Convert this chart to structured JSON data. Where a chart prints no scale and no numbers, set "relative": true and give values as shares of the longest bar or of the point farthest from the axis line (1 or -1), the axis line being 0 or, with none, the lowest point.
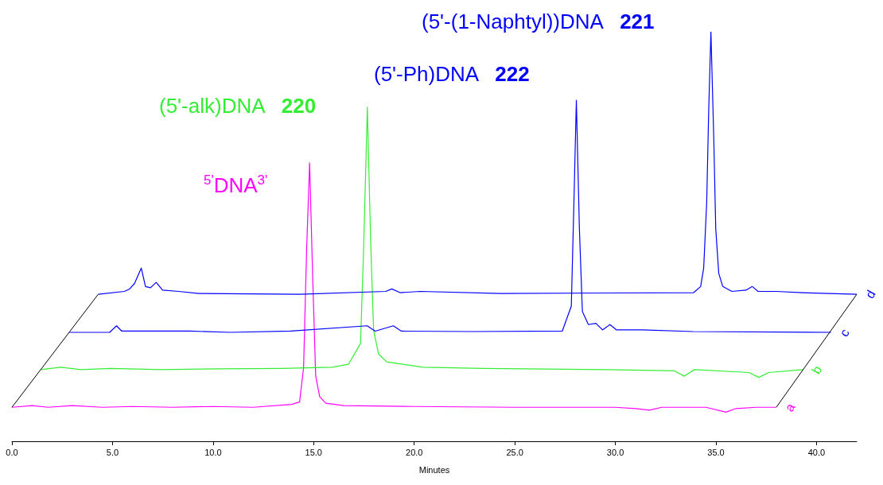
{
  "chart_data": {
    "type": "line",
    "relative": true,
    "xlabel": "Minutes",
    "xlim": [
      0,
      42
    ],
    "xticks": [
      {
        "value": 0,
        "label": "0.0"
      },
      {
        "value": 5,
        "label": "5.0"
      },
      {
        "value": 10,
        "label": "10.0"
      },
      {
        "value": 15,
        "label": "15.0"
      },
      {
        "value": 20,
        "label": "20.0"
      },
      {
        "value": 25,
        "label": "25.0"
      },
      {
        "value": 30,
        "label": "30.0"
      },
      {
        "value": 35,
        "label": "35.0"
      },
      {
        "value": 40,
        "label": "40.0"
      }
    ],
    "grid": false,
    "legend": false,
    "marker": "none",
    "line_style": "solid",
    "annotations": [
      "$^{5'}$DNA$^{3'}$",
      "(5'-alk)DNA   220",
      "(5'-Ph)DNA   222",
      "(5'-(1-Naphtyl))DNA   221"
    ],
    "series": [
      {
        "name": "a",
        "color": "#ff00ff",
        "x": [
          0,
          1.0,
          1.8,
          3.0,
          4.5,
          6.0,
          8.0,
          10.0,
          12.0,
          13.9,
          14.3,
          14.5,
          14.65,
          14.8,
          14.95,
          15.1,
          15.3,
          15.6,
          16.5,
          20,
          25,
          30,
          31.0,
          31.7,
          32.3,
          34.5,
          35.5,
          36.0,
          37,
          38.0
        ],
        "values": [
          0.083,
          0.087,
          0.083,
          0.087,
          0.083,
          0.085,
          0.083,
          0.085,
          0.083,
          0.09,
          0.096,
          0.18,
          0.468,
          0.68,
          0.404,
          0.16,
          0.109,
          0.093,
          0.087,
          0.085,
          0.083,
          0.083,
          0.08,
          0.076,
          0.083,
          0.083,
          0.071,
          0.08,
          0.083,
          0.083
        ]
      },
      {
        "name": "b",
        "color": "#33ee33",
        "x": [
          1.43,
          2.43,
          3.43,
          4.93,
          7.43,
          10.43,
          13.43,
          15.93,
          16.73,
          17.33,
          17.48,
          17.67,
          17.83,
          17.98,
          18.23,
          18.63,
          19.43,
          20.43,
          23.43,
          29.43,
          32.93,
          33.43,
          33.93,
          36.63,
          37.13,
          37.63,
          39.33
        ],
        "values": [
          0.175,
          0.181,
          0.175,
          0.178,
          0.175,
          0.177,
          0.178,
          0.181,
          0.188,
          0.239,
          0.463,
          0.816,
          0.495,
          0.271,
          0.213,
          0.194,
          0.188,
          0.181,
          0.178,
          0.175,
          0.172,
          0.159,
          0.175,
          0.168,
          0.156,
          0.168,
          0.175
        ]
      },
      {
        "name": "c",
        "color": "#0000ff",
        "x": [
          2.86,
          4.86,
          5.2,
          5.46,
          8.86,
          10.86,
          13.86,
          17.66,
          18.06,
          18.96,
          19.36,
          22.86,
          27.36,
          27.81,
          27.94,
          28.06,
          28.21,
          28.36,
          28.66,
          29.03,
          29.36,
          29.73,
          30.06,
          31.36,
          33.86,
          40.72
        ],
        "values": [
          0.266,
          0.266,
          0.282,
          0.269,
          0.269,
          0.266,
          0.269,
          0.282,
          0.269,
          0.282,
          0.269,
          0.268,
          0.269,
          0.33,
          0.586,
          0.833,
          0.522,
          0.317,
          0.285,
          0.288,
          0.272,
          0.285,
          0.272,
          0.272,
          0.268,
          0.266
        ]
      },
      {
        "name": "d",
        "color": "#0000ff",
        "x": [
          4.29,
          5.59,
          5.85,
          6.09,
          6.43,
          6.64,
          6.89,
          7.17,
          7.49,
          8.29,
          9.29,
          14.29,
          18.59,
          18.89,
          19.29,
          20.29,
          24.29,
          33.89,
          34.24,
          34.39,
          34.54,
          34.64,
          34.75,
          34.89,
          34.99,
          35.14,
          35.34,
          35.79,
          36.49,
          36.81,
          37.09,
          37.99,
          39.29,
          42.0
        ],
        "values": [
          0.359,
          0.366,
          0.372,
          0.385,
          0.423,
          0.378,
          0.375,
          0.388,
          0.369,
          0.366,
          0.361,
          0.359,
          0.366,
          0.372,
          0.363,
          0.366,
          0.361,
          0.363,
          0.378,
          0.423,
          0.583,
          0.808,
          1.0,
          0.744,
          0.519,
          0.41,
          0.378,
          0.366,
          0.369,
          0.378,
          0.366,
          0.366,
          0.363,
          0.359
        ]
      },
      {
        "color": "#000000",
        "x": [
          0,
          4.29
        ],
        "values": [
          0.083,
          0.359
        ]
      },
      {
        "color": "#000000",
        "x": [
          38.0,
          42.0
        ],
        "values": [
          0.083,
          0.359
        ]
      }
    ]
  }
}
